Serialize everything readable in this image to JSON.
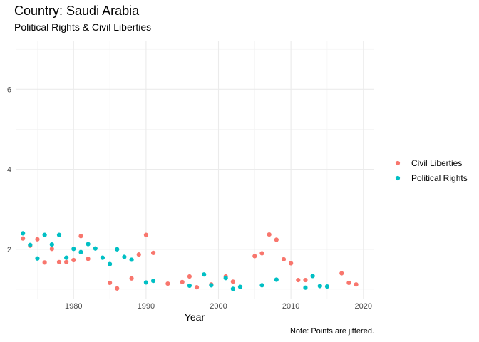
{
  "title": "Country: Saudi Arabia",
  "subtitle": "Political Rights & Civil Liberties",
  "caption": "Note: Points are jittered.",
  "chart_data": {
    "type": "scatter",
    "title": "Country: Saudi Arabia",
    "subtitle": "Political Rights & Civil Liberties",
    "xlabel": "Year",
    "ylabel": "",
    "xlim": [
      1972,
      2021.5
    ],
    "ylim": [
      0.75,
      7.2
    ],
    "x_ticks": [
      1980,
      1990,
      2000,
      2010,
      2020
    ],
    "y_ticks": [
      2,
      4,
      6
    ],
    "grid": true,
    "legend_position": "right",
    "series": [
      {
        "name": "Civil Liberties",
        "color": "#F8766D",
        "points": [
          [
            1973.0,
            2.27
          ],
          [
            1974.0,
            2.09
          ],
          [
            1975.0,
            2.25
          ],
          [
            1976.0,
            1.67
          ],
          [
            1977.0,
            2.01
          ],
          [
            1978.0,
            1.68
          ],
          [
            1979.0,
            1.68
          ],
          [
            1980.0,
            1.73
          ],
          [
            1981.0,
            2.33
          ],
          [
            1982.0,
            1.76
          ],
          [
            1985.0,
            1.16
          ],
          [
            1986.0,
            1.02
          ],
          [
            1988.0,
            1.27
          ],
          [
            1989.0,
            1.87
          ],
          [
            1990.0,
            2.36
          ],
          [
            1991.0,
            1.91
          ],
          [
            1993.0,
            1.14
          ],
          [
            1995.0,
            1.18
          ],
          [
            1996.0,
            1.32
          ],
          [
            1997.0,
            1.05
          ],
          [
            1999.0,
            1.12
          ],
          [
            2001.0,
            1.32
          ],
          [
            2002.0,
            1.19
          ],
          [
            2005.0,
            1.83
          ],
          [
            2006.0,
            1.9
          ],
          [
            2007.0,
            2.37
          ],
          [
            2008.0,
            2.24
          ],
          [
            2009.0,
            1.75
          ],
          [
            2010.0,
            1.65
          ],
          [
            2011.0,
            1.23
          ],
          [
            2012.0,
            1.23
          ],
          [
            2017.0,
            1.4
          ],
          [
            2018.0,
            1.16
          ],
          [
            2019.0,
            1.12
          ]
        ]
      },
      {
        "name": "Political Rights",
        "color": "#00BFC4",
        "points": [
          [
            1973.0,
            2.4
          ],
          [
            1974.0,
            2.11
          ],
          [
            1975.0,
            1.77
          ],
          [
            1976.0,
            2.36
          ],
          [
            1977.0,
            2.12
          ],
          [
            1978.0,
            2.36
          ],
          [
            1979.0,
            1.79
          ],
          [
            1980.0,
            2.01
          ],
          [
            1981.0,
            1.93
          ],
          [
            1982.0,
            2.13
          ],
          [
            1983.0,
            2.02
          ],
          [
            1984.0,
            1.79
          ],
          [
            1985.0,
            1.63
          ],
          [
            1986.0,
            2.0
          ],
          [
            1987.0,
            1.81
          ],
          [
            1988.0,
            1.74
          ],
          [
            1990.0,
            1.17
          ],
          [
            1991.0,
            1.21
          ],
          [
            1996.0,
            1.09
          ],
          [
            1998.0,
            1.37
          ],
          [
            1999.0,
            1.1
          ],
          [
            2001.0,
            1.28
          ],
          [
            2002.0,
            1.01
          ],
          [
            2003.0,
            1.06
          ],
          [
            2006.0,
            1.1
          ],
          [
            2008.0,
            1.24
          ],
          [
            2012.0,
            1.04
          ],
          [
            2013.0,
            1.33
          ],
          [
            2014.0,
            1.08
          ],
          [
            2015.0,
            1.07
          ]
        ]
      }
    ]
  }
}
